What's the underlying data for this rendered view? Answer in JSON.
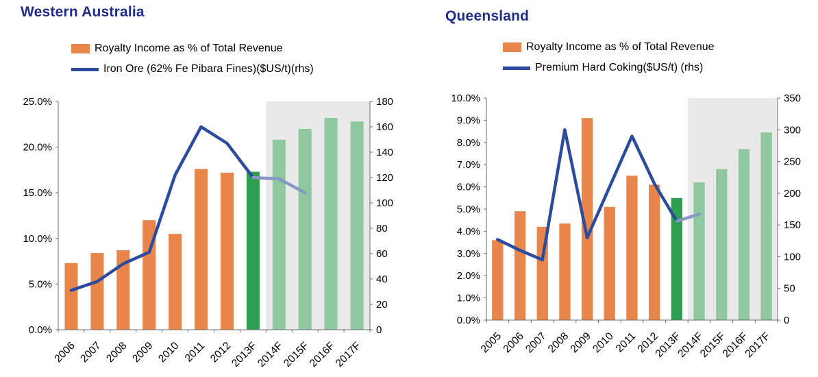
{
  "colors": {
    "title": "#1F2D8A",
    "bar_actual": "#E8854B",
    "bar_transition": "#2E9E50",
    "bar_forecast": "#8FC7A0",
    "line": "#2C4B9E",
    "line_forecast": "#8598C6",
    "forecast_band": "#E9E9E9",
    "axis": "#6E6E6E",
    "text": "#000000"
  },
  "charts": [
    {
      "chart_data": {
        "type": "bar+line",
        "title": "Western Australia",
        "legend": {
          "bar_label": "Royalty Income as % of Total Revenue",
          "line_label": "Iron Ore (62% Fe Pibara Fines)($US/t)(rhs)"
        },
        "categories": [
          "2006",
          "2007",
          "2008",
          "2009",
          "2010",
          "2011",
          "2012",
          "2013F",
          "2014F",
          "2015F",
          "2016F",
          "2017F"
        ],
        "bar_series": {
          "name": "Royalty Income as % of Total Revenue",
          "unit": "%",
          "values": [
            7.3,
            8.4,
            8.7,
            12.0,
            10.5,
            17.6,
            17.2,
            17.3,
            20.8,
            22.0,
            23.2,
            22.8
          ]
        },
        "bar_roles": [
          "actual",
          "actual",
          "actual",
          "actual",
          "actual",
          "actual",
          "actual",
          "transition",
          "forecast",
          "forecast",
          "forecast",
          "forecast"
        ],
        "line_series": {
          "name": "Iron Ore (62% Fe Pibara Fines)($US/t)(rhs)",
          "axis": "right",
          "values": [
            31,
            38,
            52,
            61,
            122,
            160,
            147,
            120,
            119,
            108,
            null,
            null
          ],
          "forecast_from_index": 7
        },
        "left_axis": {
          "min": 0,
          "max": 25,
          "step": 5,
          "format": "percent1"
        },
        "right_axis": {
          "min": 0,
          "max": 180,
          "step": 20,
          "format": "int"
        },
        "forecast_band_start_index": 8,
        "grid": false,
        "legend_position": "top"
      }
    },
    {
      "chart_data": {
        "type": "bar+line",
        "title": "Queensland",
        "legend": {
          "bar_label": "Royalty Income as % of Total Revenue",
          "line_label": "Premium Hard Coking($US/t) (rhs)"
        },
        "categories": [
          "2005",
          "2006",
          "2007",
          "2008",
          "2009",
          "2010",
          "2011",
          "2012",
          "2013F",
          "2014F",
          "2015F",
          "2016F",
          "2017F"
        ],
        "bar_series": {
          "name": "Royalty Income as % of Total Revenue",
          "unit": "%",
          "values": [
            3.6,
            4.9,
            4.2,
            4.35,
            9.1,
            5.1,
            6.5,
            6.1,
            5.5,
            6.2,
            6.8,
            7.7,
            8.45
          ]
        },
        "bar_roles": [
          "actual",
          "actual",
          "actual",
          "actual",
          "actual",
          "actual",
          "actual",
          "actual",
          "transition",
          "forecast",
          "forecast",
          "forecast",
          "forecast"
        ],
        "line_series": {
          "name": "Premium Hard Coking($US/t) (rhs)",
          "axis": "right",
          "values": [
            127,
            110,
            95,
            300,
            130,
            210,
            290,
            215,
            156,
            167,
            null,
            null,
            null
          ],
          "forecast_from_index": 8
        },
        "left_axis": {
          "min": 0,
          "max": 10,
          "step": 1,
          "format": "percent1"
        },
        "right_axis": {
          "min": 0,
          "max": 350,
          "step": 50,
          "format": "int"
        },
        "forecast_band_start_index": 9,
        "grid": false,
        "legend_position": "top"
      }
    }
  ]
}
